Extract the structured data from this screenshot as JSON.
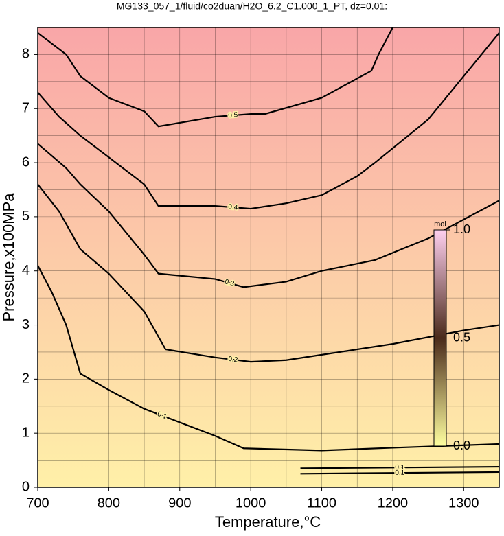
{
  "chart_data": {
    "type": "contour",
    "title": "MG133_057_1/fluid/co2duan/H2O_6.2_C1.000_1_PT, dz=0.01:",
    "xlabel": "Temperature,°C",
    "ylabel": "Pressure,x100MPa",
    "xlim": [
      700,
      1350
    ],
    "ylim": [
      0,
      8.5
    ],
    "xticks": [
      700,
      800,
      900,
      1000,
      1100,
      1200,
      1300
    ],
    "yticks": [
      0,
      1,
      2,
      3,
      4,
      5,
      6,
      7,
      8
    ],
    "grid": true,
    "grid_spacing": [
      50,
      0.5
    ],
    "background_colors": [
      "#fff0a8",
      "#f9a6a8"
    ],
    "line_color": "#000000",
    "series": [
      {
        "name": "0.1",
        "x": [
          700,
          720,
          740,
          760,
          800,
          850,
          900,
          950,
          990,
          1100,
          1200,
          1350
        ],
        "y": [
          4.1,
          3.6,
          3.0,
          2.1,
          1.8,
          1.45,
          1.2,
          0.95,
          0.72,
          0.68,
          0.73,
          0.8
        ]
      },
      {
        "name": "0.2",
        "x": [
          700,
          730,
          760,
          800,
          850,
          880,
          950,
          1000,
          1050,
          1100,
          1200,
          1300,
          1350
        ],
        "y": [
          5.6,
          5.1,
          4.4,
          3.95,
          3.25,
          2.55,
          2.4,
          2.32,
          2.35,
          2.45,
          2.65,
          2.9,
          3.0
        ]
      },
      {
        "name": "0.3",
        "x": [
          700,
          740,
          760,
          800,
          850,
          870,
          950,
          990,
          1050,
          1100,
          1175,
          1250,
          1350
        ],
        "y": [
          6.35,
          5.9,
          5.6,
          5.1,
          4.3,
          3.95,
          3.85,
          3.7,
          3.8,
          4.0,
          4.2,
          4.6,
          5.3
        ]
      },
      {
        "name": "0.4",
        "x": [
          700,
          730,
          760,
          800,
          850,
          870,
          950,
          1000,
          1050,
          1100,
          1150,
          1175,
          1250,
          1350
        ],
        "y": [
          7.3,
          6.85,
          6.5,
          6.1,
          5.6,
          5.2,
          5.2,
          5.15,
          5.25,
          5.4,
          5.75,
          6.0,
          6.8,
          8.4
        ]
      },
      {
        "name": "0.5",
        "x": [
          700,
          740,
          760,
          800,
          850,
          870,
          950,
          1000,
          1020,
          1100,
          1170,
          1180,
          1200
        ],
        "y": [
          8.4,
          8.0,
          7.6,
          7.2,
          6.95,
          6.67,
          6.85,
          6.9,
          6.9,
          7.2,
          7.7,
          8.0,
          8.5
        ]
      },
      {
        "name": "0.1",
        "x": [
          1070,
          1350
        ],
        "y": [
          0.35,
          0.38
        ]
      },
      {
        "name": "0.1",
        "x": [
          1070,
          1350
        ],
        "y": [
          0.25,
          0.28
        ]
      }
    ],
    "colorbar": {
      "label": "mol",
      "lim": [
        0,
        1
      ],
      "ticks": [
        {
          "value": 0,
          "label": "0.0"
        },
        {
          "value": 0.5,
          "label": "0.5"
        },
        {
          "value": 1,
          "label": "1.0"
        }
      ],
      "colors": [
        "#ffffa0",
        "#4a2a1a",
        "#ffd0f0"
      ]
    }
  }
}
